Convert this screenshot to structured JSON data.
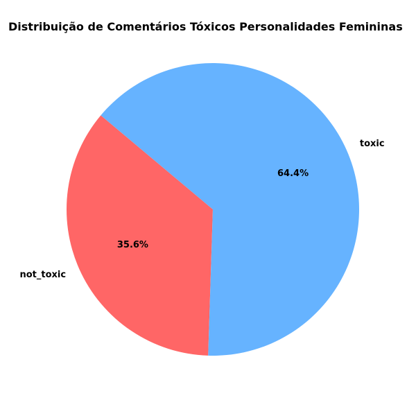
{
  "chart_data": {
    "type": "pie",
    "title": "Distribuição de Comentários Tóxicos Personalidades Femininas",
    "start_angle_deg": 140,
    "slices": [
      {
        "label": "not_toxic",
        "value": 35.6,
        "pct_text": "35.6%",
        "color": "#ff6666"
      },
      {
        "label": "toxic",
        "value": 64.4,
        "pct_text": "64.4%",
        "color": "#66b3ff"
      }
    ]
  }
}
